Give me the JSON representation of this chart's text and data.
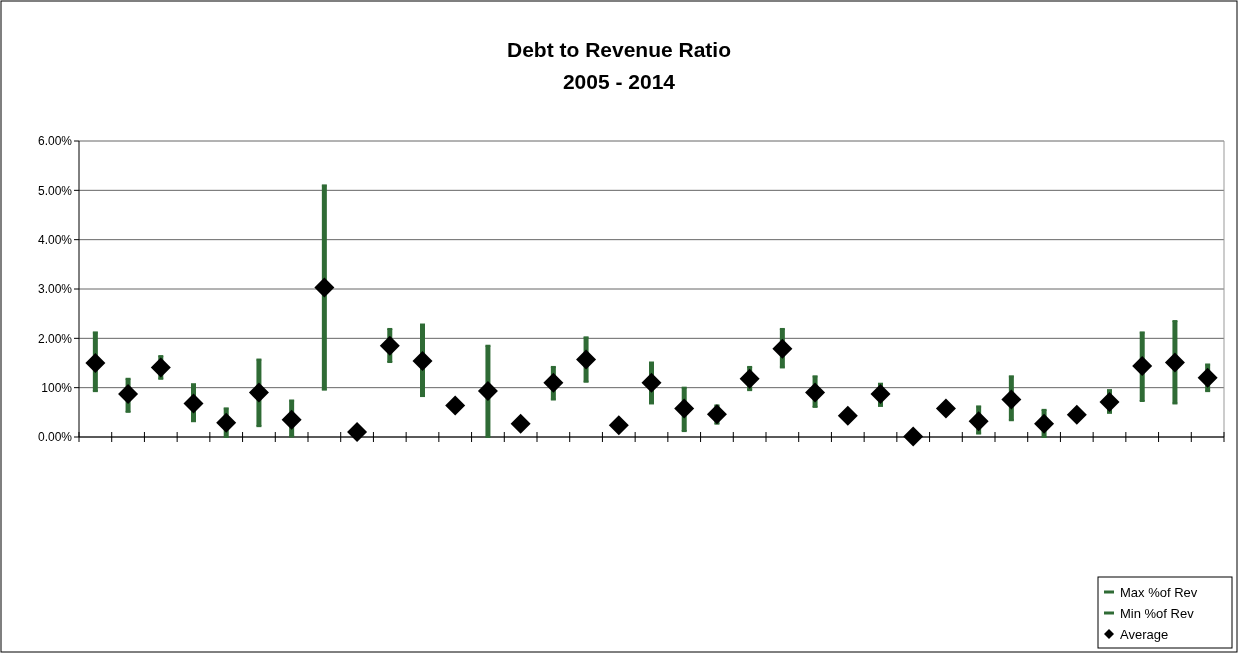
{
  "chart_data": {
    "type": "scatter",
    "title": "Debt to Revenue Ratio",
    "subtitle": "2005 - 2014",
    "categories": [
      null,
      null,
      null,
      null,
      null,
      null,
      null,
      null,
      null,
      null,
      null,
      null,
      null,
      null,
      null,
      null,
      null,
      null,
      null,
      null,
      null,
      null,
      null,
      null,
      null,
      null,
      null,
      null,
      null,
      null,
      null,
      null,
      null,
      null,
      null
    ],
    "ylim": [
      0,
      6
    ],
    "yticks": [
      {
        "value": 0,
        "label": "0.00%"
      },
      {
        "value": 1,
        "label": "100%"
      },
      {
        "value": 2,
        "label": "2.00%"
      },
      {
        "value": 3,
        "label": "3.00%"
      },
      {
        "value": 4,
        "label": "4.00%"
      },
      {
        "value": 5,
        "label": "5.00%"
      },
      {
        "value": 6,
        "label": "6.00%"
      }
    ],
    "grid": "y",
    "legend": "bottom right",
    "series": [
      {
        "name": "Max %of Rev",
        "color": "#2f6b35",
        "values": [
          2.12,
          1.18,
          1.64,
          1.07,
          0.58,
          1.57,
          0.74,
          5.1,
          null,
          2.19,
          2.28,
          null,
          1.85,
          null,
          1.42,
          2.02,
          null,
          1.51,
          1.0,
          0.64,
          1.42,
          2.19,
          1.23,
          null,
          1.08,
          null,
          null,
          0.62,
          1.23,
          0.55,
          null,
          0.95,
          2.12,
          2.35,
          1.47
        ]
      },
      {
        "name": "Min %of Rev",
        "color": "#2f6b35",
        "values": [
          0.93,
          0.51,
          1.18,
          0.32,
          0.0,
          0.22,
          0.01,
          0.96,
          null,
          1.52,
          0.83,
          null,
          0.0,
          null,
          0.76,
          1.12,
          null,
          0.68,
          0.12,
          0.27,
          0.95,
          1.41,
          0.61,
          null,
          0.63,
          null,
          null,
          0.07,
          0.34,
          0.0,
          null,
          0.49,
          0.73,
          0.68,
          0.93
        ]
      },
      {
        "name": "Average",
        "marker": "diamond",
        "color": "#000000",
        "values": [
          1.5,
          0.87,
          1.41,
          0.68,
          0.29,
          0.9,
          0.35,
          3.03,
          0.1,
          1.85,
          1.54,
          0.64,
          0.93,
          0.27,
          1.1,
          1.57,
          0.24,
          1.1,
          0.58,
          0.46,
          1.18,
          1.79,
          0.9,
          0.43,
          0.87,
          0.01,
          0.58,
          0.32,
          0.76,
          0.27,
          0.45,
          0.71,
          1.44,
          1.51,
          1.2
        ]
      }
    ]
  }
}
